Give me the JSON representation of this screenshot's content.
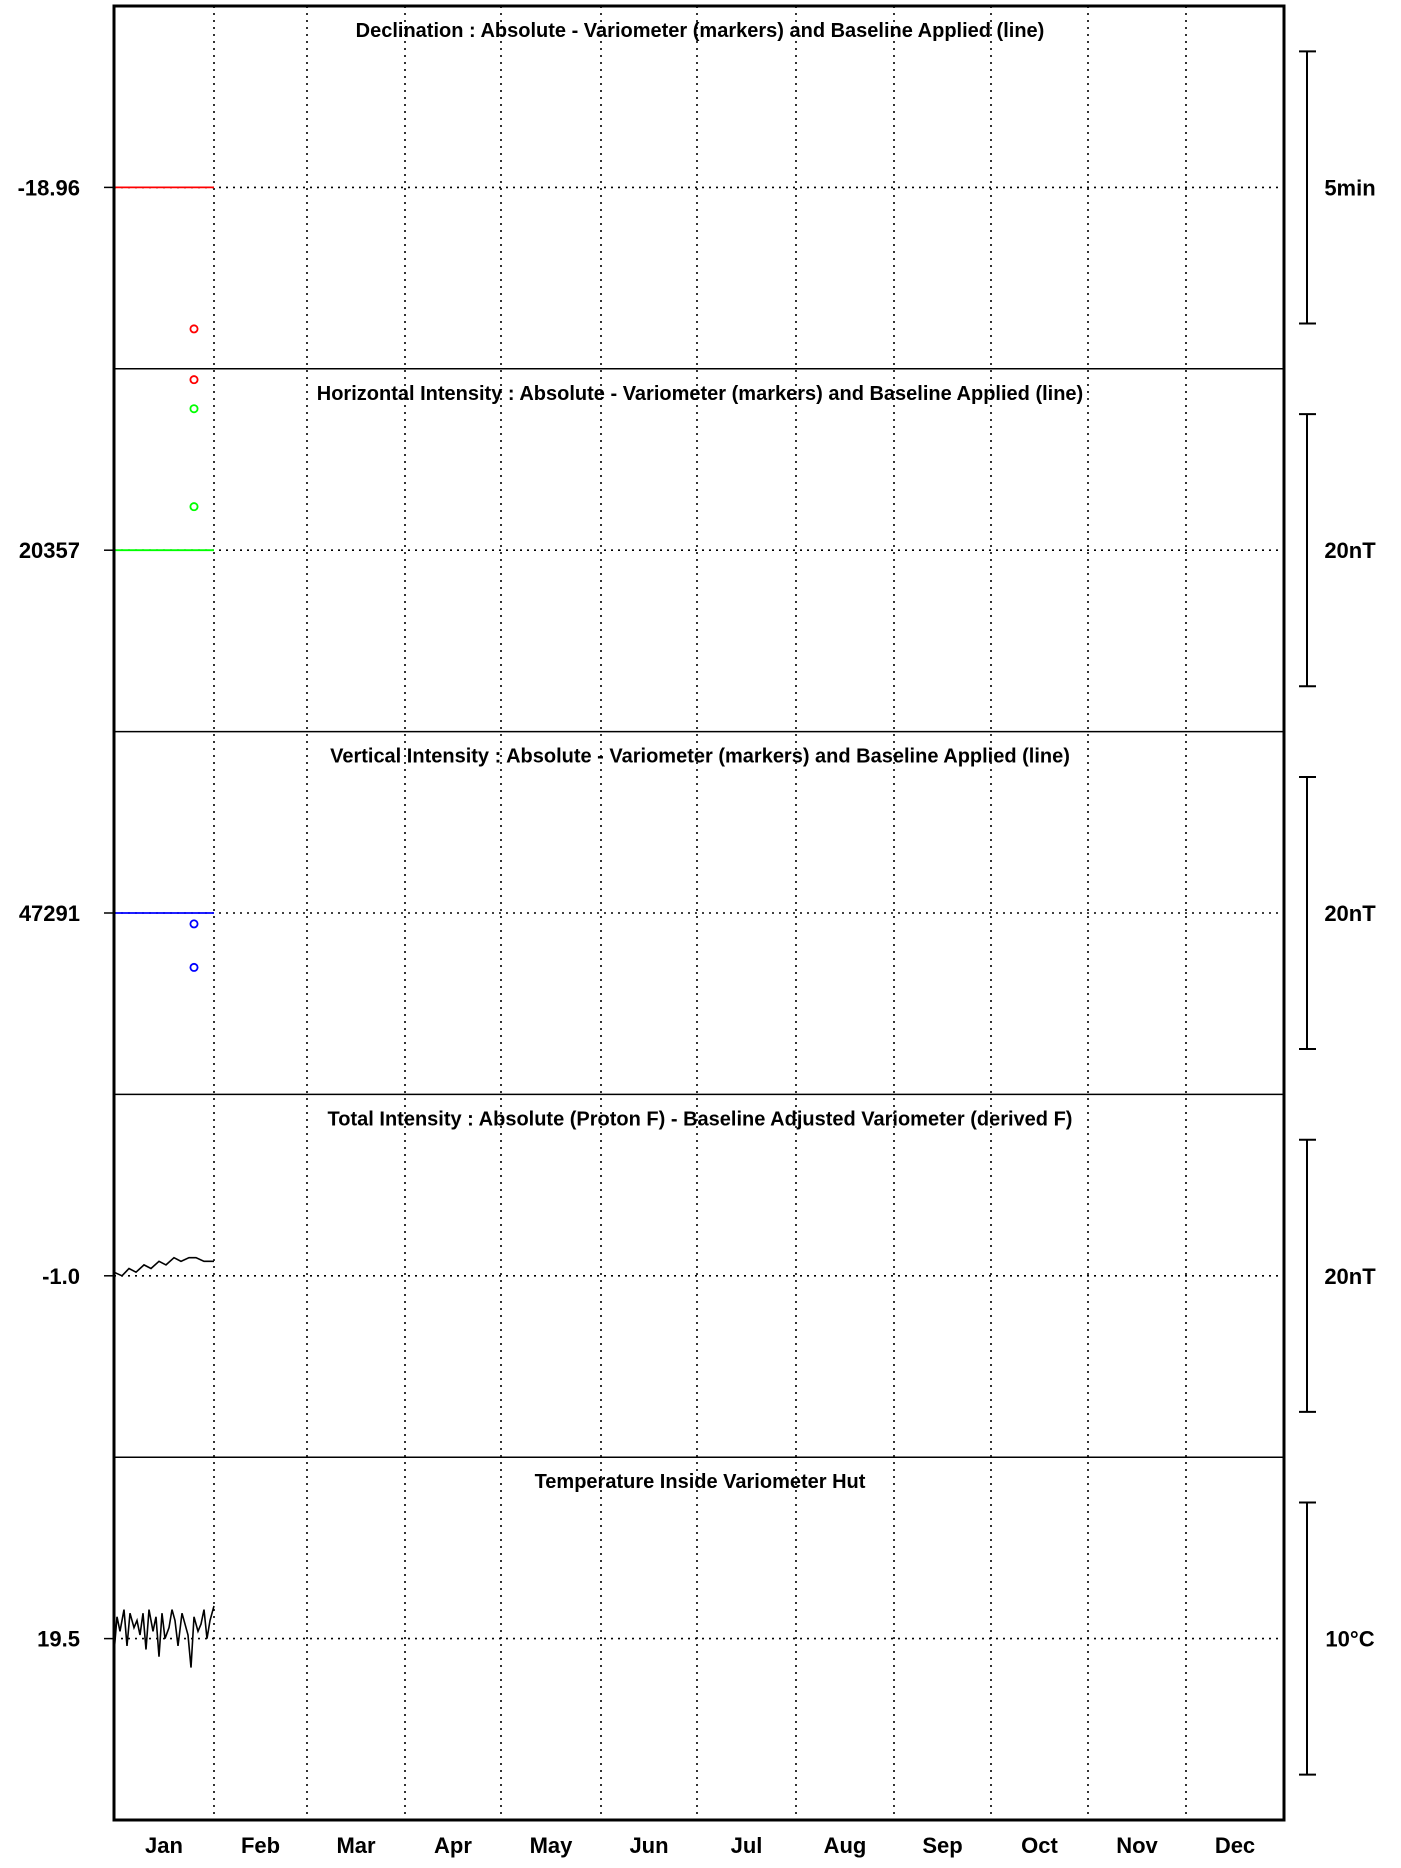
{
  "chart_data": [
    {
      "type": "scatter",
      "title": "Declination : Absolute - Variometer (markers) and Baseline Applied (line)",
      "center_label": "-18.96",
      "scale_label": "5min",
      "color": "#ff0000",
      "baseline": {
        "x": [
          0,
          1
        ],
        "y": [
          0,
          0
        ]
      },
      "series": [
        {
          "x": [
            0.8,
            0.8
          ],
          "y": [
            -0.39,
            -0.53
          ]
        }
      ],
      "ylim": [
        -0.5,
        0.5
      ]
    },
    {
      "type": "scatter",
      "title": "Horizontal Intensity : Absolute - Variometer (markers) and Baseline Applied (line)",
      "center_label": "20357",
      "scale_label": "20nT",
      "color": "#00ff00",
      "baseline": {
        "x": [
          0,
          1
        ],
        "y": [
          0,
          0
        ]
      },
      "series": [
        {
          "x": [
            0.8,
            0.8
          ],
          "y": [
            0.39,
            0.12
          ]
        }
      ],
      "ylim": [
        -0.5,
        0.5
      ]
    },
    {
      "type": "scatter",
      "title": "Vertical Intensity : Absolute - Variometer (markers) and Baseline Applied (line)",
      "center_label": "47291",
      "scale_label": "20nT",
      "color": "#0000ff",
      "baseline": {
        "x": [
          0,
          1
        ],
        "y": [
          0,
          0
        ]
      },
      "series": [
        {
          "x": [
            0.8,
            0.8
          ],
          "y": [
            -0.03,
            -0.15
          ]
        }
      ],
      "ylim": [
        -0.5,
        0.5
      ]
    },
    {
      "type": "line",
      "title": "Total Intensity : Absolute (Proton F) - Baseline Adjusted Variometer (derived F)",
      "center_label": "-1.0",
      "scale_label": "20nT",
      "color": "#000000",
      "series": [
        {
          "x": [
            0,
            0.08,
            0.15,
            0.22,
            0.3,
            0.37,
            0.45,
            0.52,
            0.6,
            0.67,
            0.75,
            0.82,
            0.9,
            0.97,
            1.0
          ],
          "y": [
            0.01,
            0.0,
            0.02,
            0.01,
            0.03,
            0.02,
            0.04,
            0.03,
            0.05,
            0.04,
            0.05,
            0.05,
            0.04,
            0.04,
            0.04
          ]
        }
      ],
      "ylim": [
        -0.5,
        0.5
      ]
    },
    {
      "type": "line",
      "title": "Temperature Inside Variometer Hut",
      "center_label": "19.5",
      "scale_label": "10°C",
      "color": "#000000",
      "series": [
        {
          "x": [
            0,
            0.03,
            0.06,
            0.1,
            0.13,
            0.16,
            0.2,
            0.23,
            0.26,
            0.29,
            0.32,
            0.35,
            0.39,
            0.42,
            0.45,
            0.48,
            0.51,
            0.55,
            0.58,
            0.61,
            0.64,
            0.68,
            0.71,
            0.74,
            0.77,
            0.8,
            0.84,
            0.87,
            0.9,
            0.93,
            0.96,
            1.0
          ],
          "y": [
            -0.04,
            0.06,
            0.02,
            0.08,
            -0.02,
            0.07,
            0.03,
            0.05,
            0.01,
            0.07,
            -0.03,
            0.08,
            0.02,
            0.06,
            -0.05,
            0.07,
            0.0,
            0.03,
            0.08,
            0.05,
            -0.02,
            0.07,
            0.04,
            0.01,
            -0.08,
            0.06,
            0.02,
            0.04,
            0.08,
            0.0,
            0.05,
            0.09
          ]
        }
      ],
      "ylim": [
        -0.5,
        0.5
      ]
    }
  ],
  "months": [
    "Jan",
    "Feb",
    "Mar",
    "Apr",
    "May",
    "Jun",
    "Jul",
    "Aug",
    "Sep",
    "Oct",
    "Nov",
    "Dec"
  ]
}
